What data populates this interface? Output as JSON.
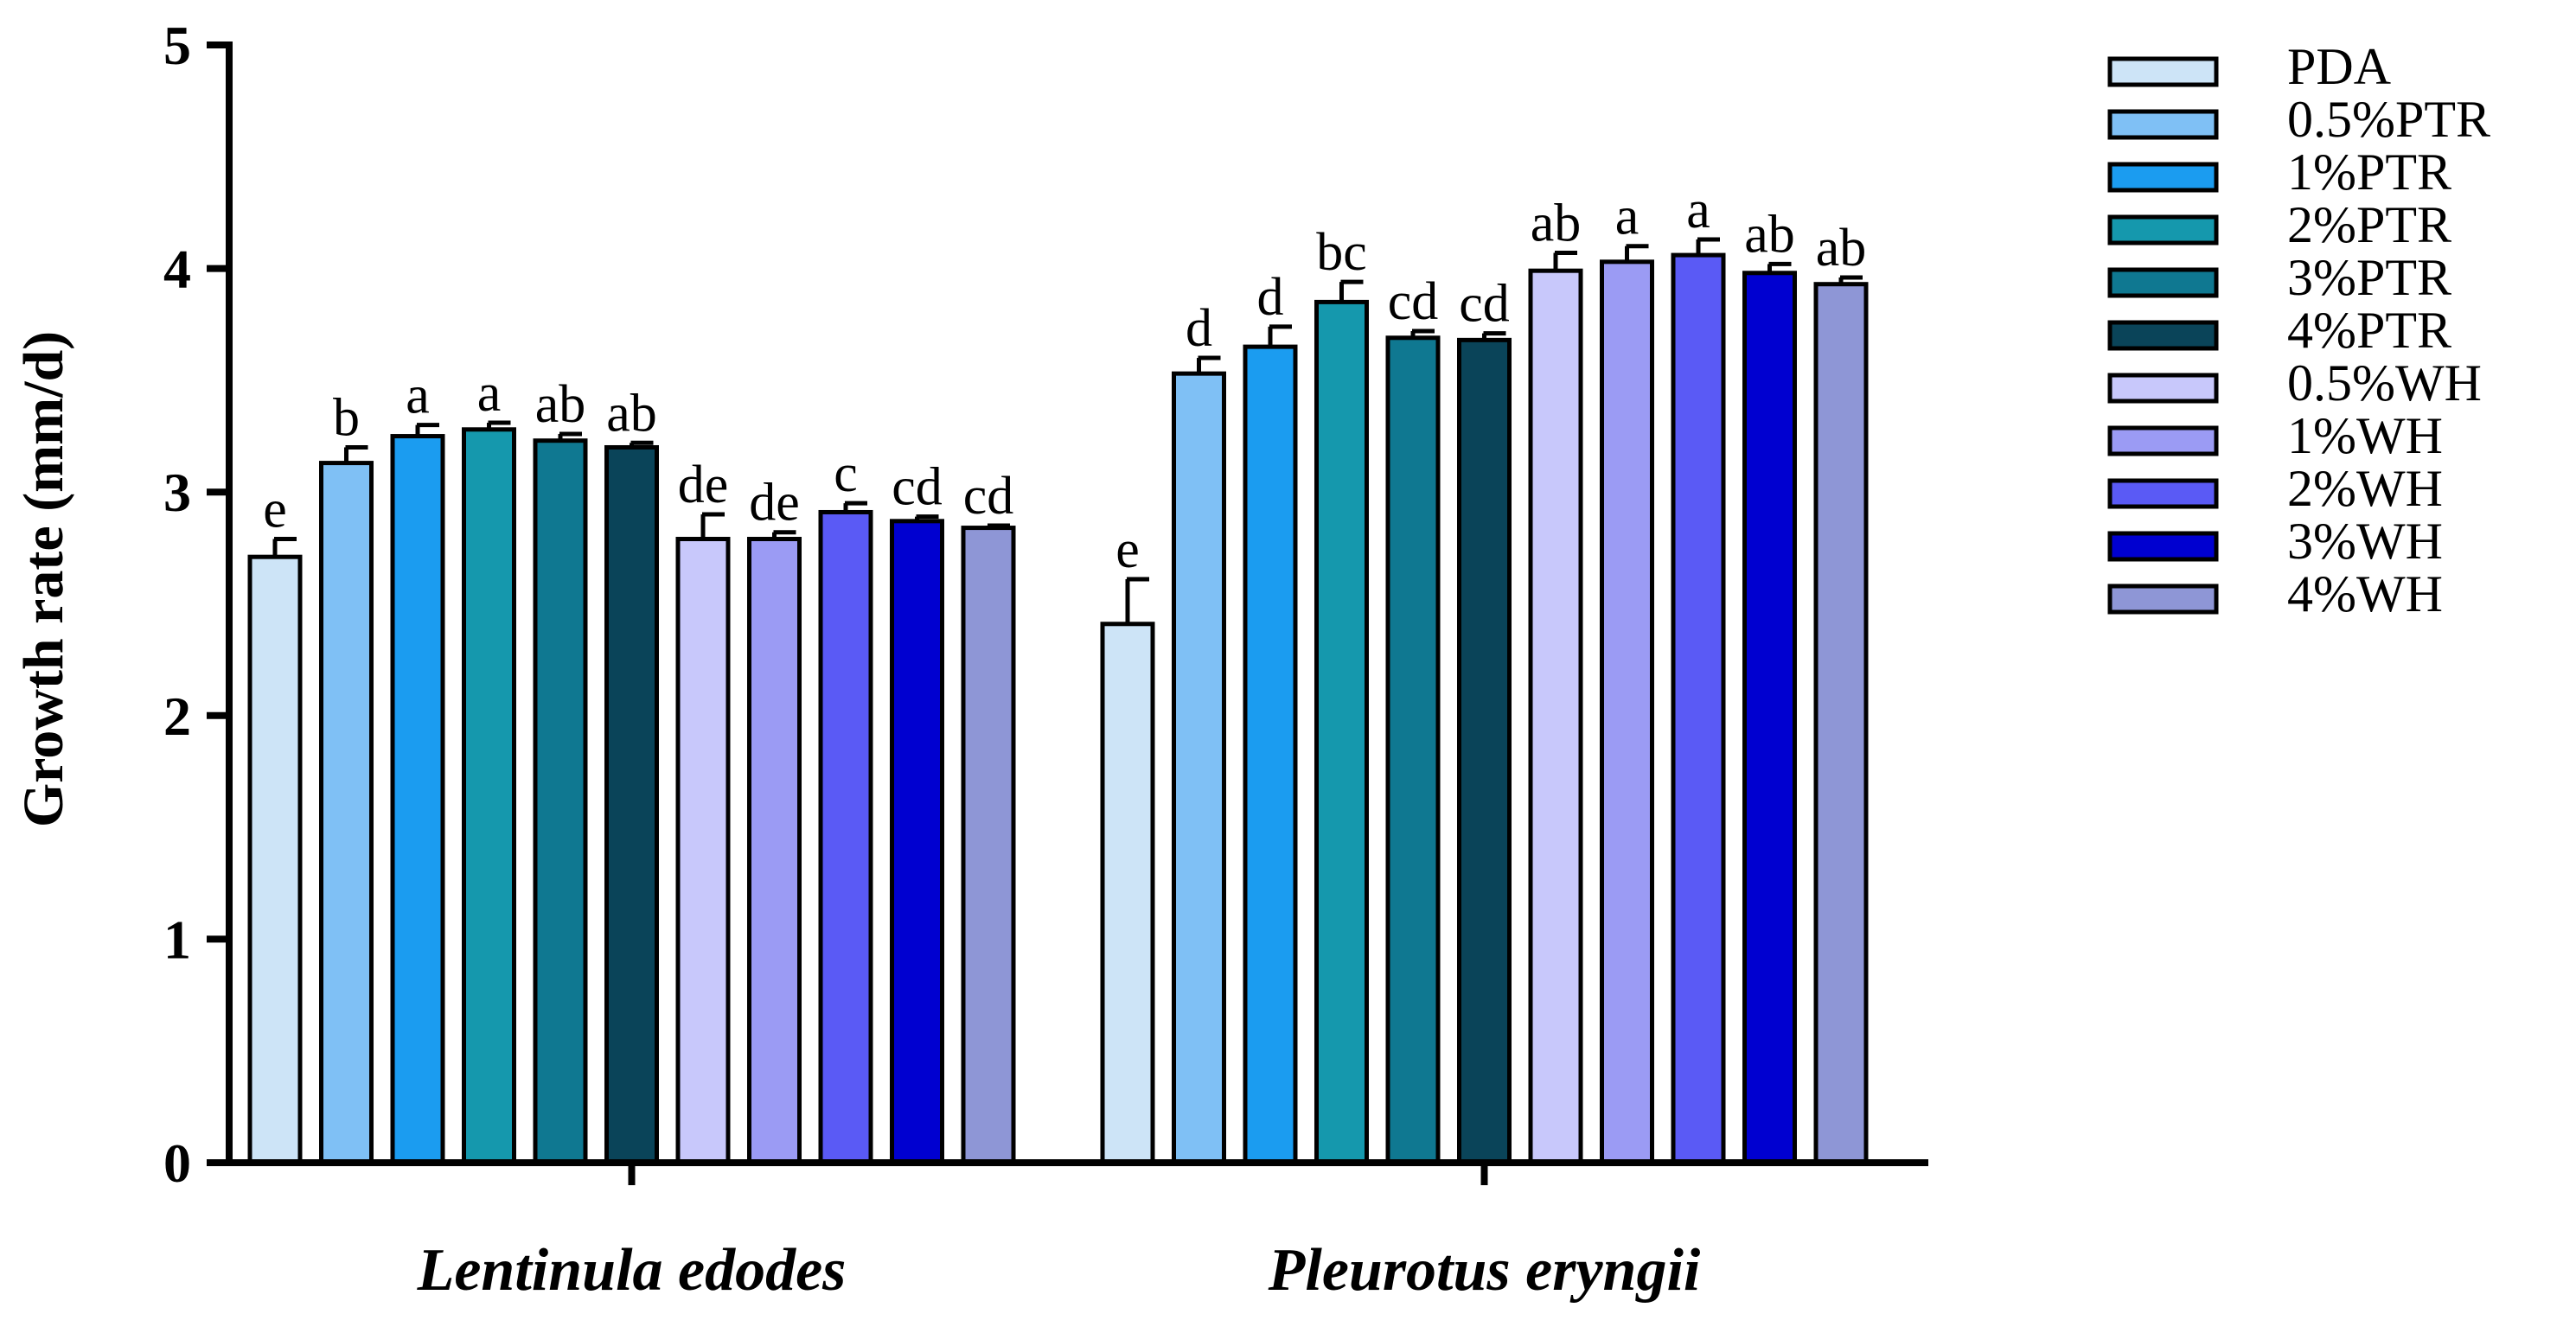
{
  "chart_data": {
    "type": "bar",
    "title": "",
    "xlabel": "",
    "ylabel": "Growth rate (mm/d)",
    "ylim": [
      0,
      5
    ],
    "yticks": [
      "0",
      "1",
      "2",
      "3",
      "4",
      "5"
    ],
    "categories": [
      "Lentinula edodes",
      "Pleurotus eryngii"
    ],
    "legend_position": "right",
    "series": [
      {
        "name": "PDA",
        "color": "#cde4f7",
        "values": [
          2.71,
          2.41
        ],
        "errors": [
          0.08,
          0.2
        ],
        "labels": [
          "e",
          "e"
        ]
      },
      {
        "name": "0.5%PTR",
        "color": "#7fc0f5",
        "values": [
          3.13,
          3.53
        ],
        "errors": [
          0.07,
          0.07
        ],
        "labels": [
          "b",
          "d"
        ]
      },
      {
        "name": "1%PTR",
        "color": "#1b9cf0",
        "values": [
          3.25,
          3.65
        ],
        "errors": [
          0.05,
          0.09
        ],
        "labels": [
          "a",
          "d"
        ]
      },
      {
        "name": "2%PTR",
        "color": "#1598ad",
        "values": [
          3.28,
          3.85
        ],
        "errors": [
          0.03,
          0.09
        ],
        "labels": [
          "a",
          "bc"
        ]
      },
      {
        "name": "3%PTR",
        "color": "#0f7891",
        "values": [
          3.23,
          3.69
        ],
        "errors": [
          0.03,
          0.03
        ],
        "labels": [
          "ab",
          "cd"
        ]
      },
      {
        "name": "4%PTR",
        "color": "#0a4459",
        "values": [
          3.2,
          3.68
        ],
        "errors": [
          0.02,
          0.03
        ],
        "labels": [
          "ab",
          "cd"
        ]
      },
      {
        "name": "0.5%WH",
        "color": "#c8c8fb",
        "values": [
          2.79,
          3.99
        ],
        "errors": [
          0.11,
          0.08
        ],
        "labels": [
          "de",
          "ab"
        ]
      },
      {
        "name": "1%WH",
        "color": "#9b9bf4",
        "values": [
          2.79,
          4.03
        ],
        "errors": [
          0.03,
          0.07
        ],
        "labels": [
          "de",
          "a"
        ]
      },
      {
        "name": "2%WH",
        "color": "#5a5af5",
        "values": [
          2.91,
          4.06
        ],
        "errors": [
          0.04,
          0.07
        ],
        "labels": [
          "c",
          "a"
        ]
      },
      {
        "name": "3%WH",
        "color": "#0000d0",
        "values": [
          2.87,
          3.98
        ],
        "errors": [
          0.02,
          0.04
        ],
        "labels": [
          "cd",
          "ab"
        ]
      },
      {
        "name": "4%WH",
        "color": "#8e96d6",
        "values": [
          2.84,
          3.93
        ],
        "errors": [
          0.01,
          0.03
        ],
        "labels": [
          "cd",
          "ab"
        ]
      }
    ]
  }
}
